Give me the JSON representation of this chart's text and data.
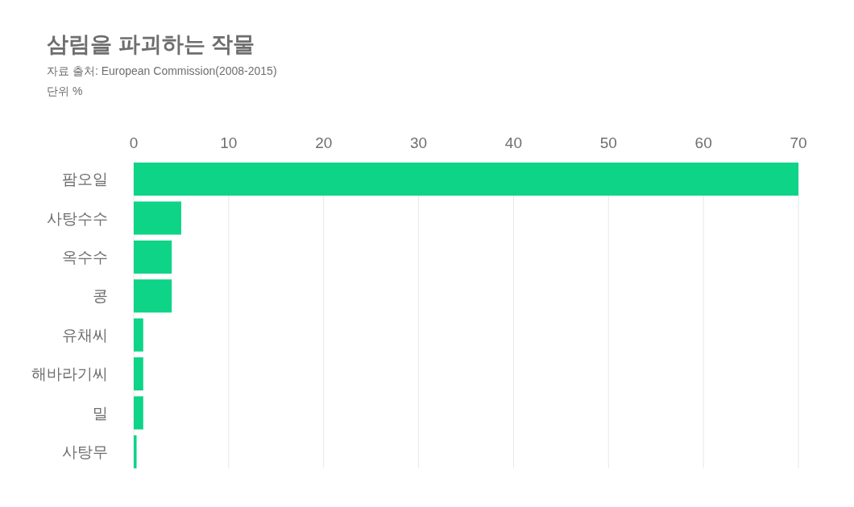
{
  "chart_data": {
    "type": "bar",
    "orientation": "horizontal",
    "title": "삼림을 파괴하는 작물",
    "subtitle": "자료 출처: European Commission(2008-2015)",
    "annotations": [
      "단위 %"
    ],
    "categories": [
      "팜오일",
      "사탕수수",
      "옥수수",
      "콩",
      "유채씨",
      "해바라기씨",
      "밀",
      "사탕무"
    ],
    "values": [
      70,
      5,
      4,
      4,
      1,
      1,
      1,
      0.3
    ],
    "color": "#0dd486",
    "xlim": [
      0,
      70
    ],
    "xticks": [
      0,
      10,
      20,
      30,
      40,
      50,
      60,
      70
    ],
    "grid": "x"
  }
}
